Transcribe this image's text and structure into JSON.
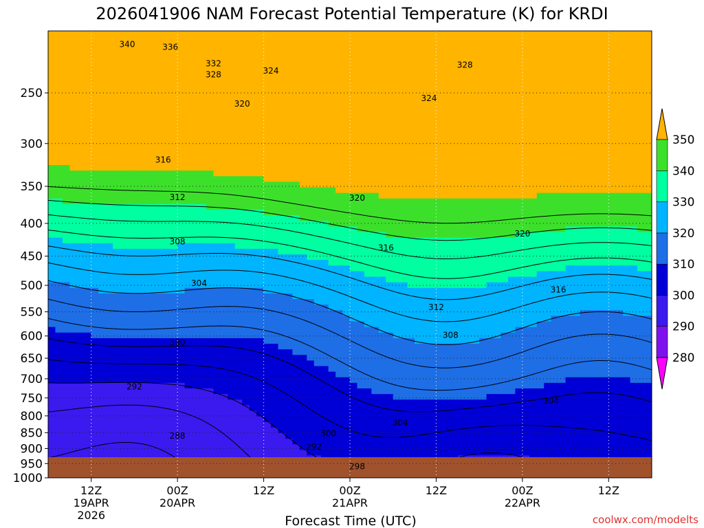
{
  "chart_data": {
    "type": "contour",
    "title": "2026041906 NAM Forecast Potential Temperature (K) for KRDI",
    "xlabel": "Forecast Time (UTC)",
    "ylabel": "",
    "y_scale": "log-pressure (hPa), inverted",
    "ylim": [
      1000,
      200
    ],
    "y_ticks": [
      250,
      300,
      350,
      400,
      450,
      500,
      550,
      600,
      650,
      700,
      750,
      800,
      850,
      900,
      950,
      1000
    ],
    "x_ticks": [
      {
        "hour": 6,
        "line1": "12Z",
        "line2": "19APR",
        "line3": "2026"
      },
      {
        "hour": 18,
        "line1": "00Z",
        "line2": "20APR",
        "line3": ""
      },
      {
        "hour": 30,
        "line1": "12Z",
        "line2": "",
        "line3": ""
      },
      {
        "hour": 42,
        "line1": "00Z",
        "line2": "21APR",
        "line3": ""
      },
      {
        "hour": 54,
        "line1": "12Z",
        "line2": "",
        "line3": ""
      },
      {
        "hour": 66,
        "line1": "00Z",
        "line2": "22APR",
        "line3": ""
      },
      {
        "hour": 78,
        "line1": "12Z",
        "line2": "",
        "line3": ""
      }
    ],
    "x_range_hours": [
      0,
      84
    ],
    "grid": "dotted",
    "colorbar": {
      "placement": "right",
      "levels": [
        280,
        290,
        300,
        310,
        320,
        330,
        340,
        350
      ],
      "colors": [
        "#ff00ff",
        "#7f11ee",
        "#3a1aee",
        "#0000d6",
        "#1e6ee6",
        "#00b4ff",
        "#00ffa0",
        "#3ce02a",
        "#f0f020",
        "#ffb400"
      ]
    },
    "ground_color": "#a0522d",
    "contour_labels": [
      {
        "value": "340",
        "hour": 11,
        "p": 210
      },
      {
        "value": "336",
        "hour": 17,
        "p": 212
      },
      {
        "value": "332",
        "hour": 23,
        "p": 225
      },
      {
        "value": "328",
        "hour": 23,
        "p": 234
      },
      {
        "value": "324",
        "hour": 31,
        "p": 231
      },
      {
        "value": "320",
        "hour": 27,
        "p": 260
      },
      {
        "value": "316",
        "hour": 16,
        "p": 318
      },
      {
        "value": "312",
        "hour": 18,
        "p": 364
      },
      {
        "value": "308",
        "hour": 18,
        "p": 427
      },
      {
        "value": "304",
        "hour": 21,
        "p": 496
      },
      {
        "value": "300",
        "hour": 18,
        "p": 614
      },
      {
        "value": "292",
        "hour": 12,
        "p": 720
      },
      {
        "value": "288",
        "hour": 18,
        "p": 860
      },
      {
        "value": "328",
        "hour": 58,
        "p": 226
      },
      {
        "value": "324",
        "hour": 53,
        "p": 255
      },
      {
        "value": "320",
        "hour": 43,
        "p": 365
      },
      {
        "value": "320",
        "hour": 66,
        "p": 415
      },
      {
        "value": "316",
        "hour": 47,
        "p": 437
      },
      {
        "value": "316",
        "hour": 71,
        "p": 508
      },
      {
        "value": "312",
        "hour": 54,
        "p": 541
      },
      {
        "value": "308",
        "hour": 56,
        "p": 598
      },
      {
        "value": "304",
        "hour": 49,
        "p": 820
      },
      {
        "value": "304",
        "hour": 70,
        "p": 758
      },
      {
        "value": "300",
        "hour": 39,
        "p": 852
      },
      {
        "value": "292",
        "hour": 37,
        "p": 895
      },
      {
        "value": "298",
        "hour": 43,
        "p": 960
      }
    ],
    "source_credit": "coolwx.com/modelts"
  }
}
